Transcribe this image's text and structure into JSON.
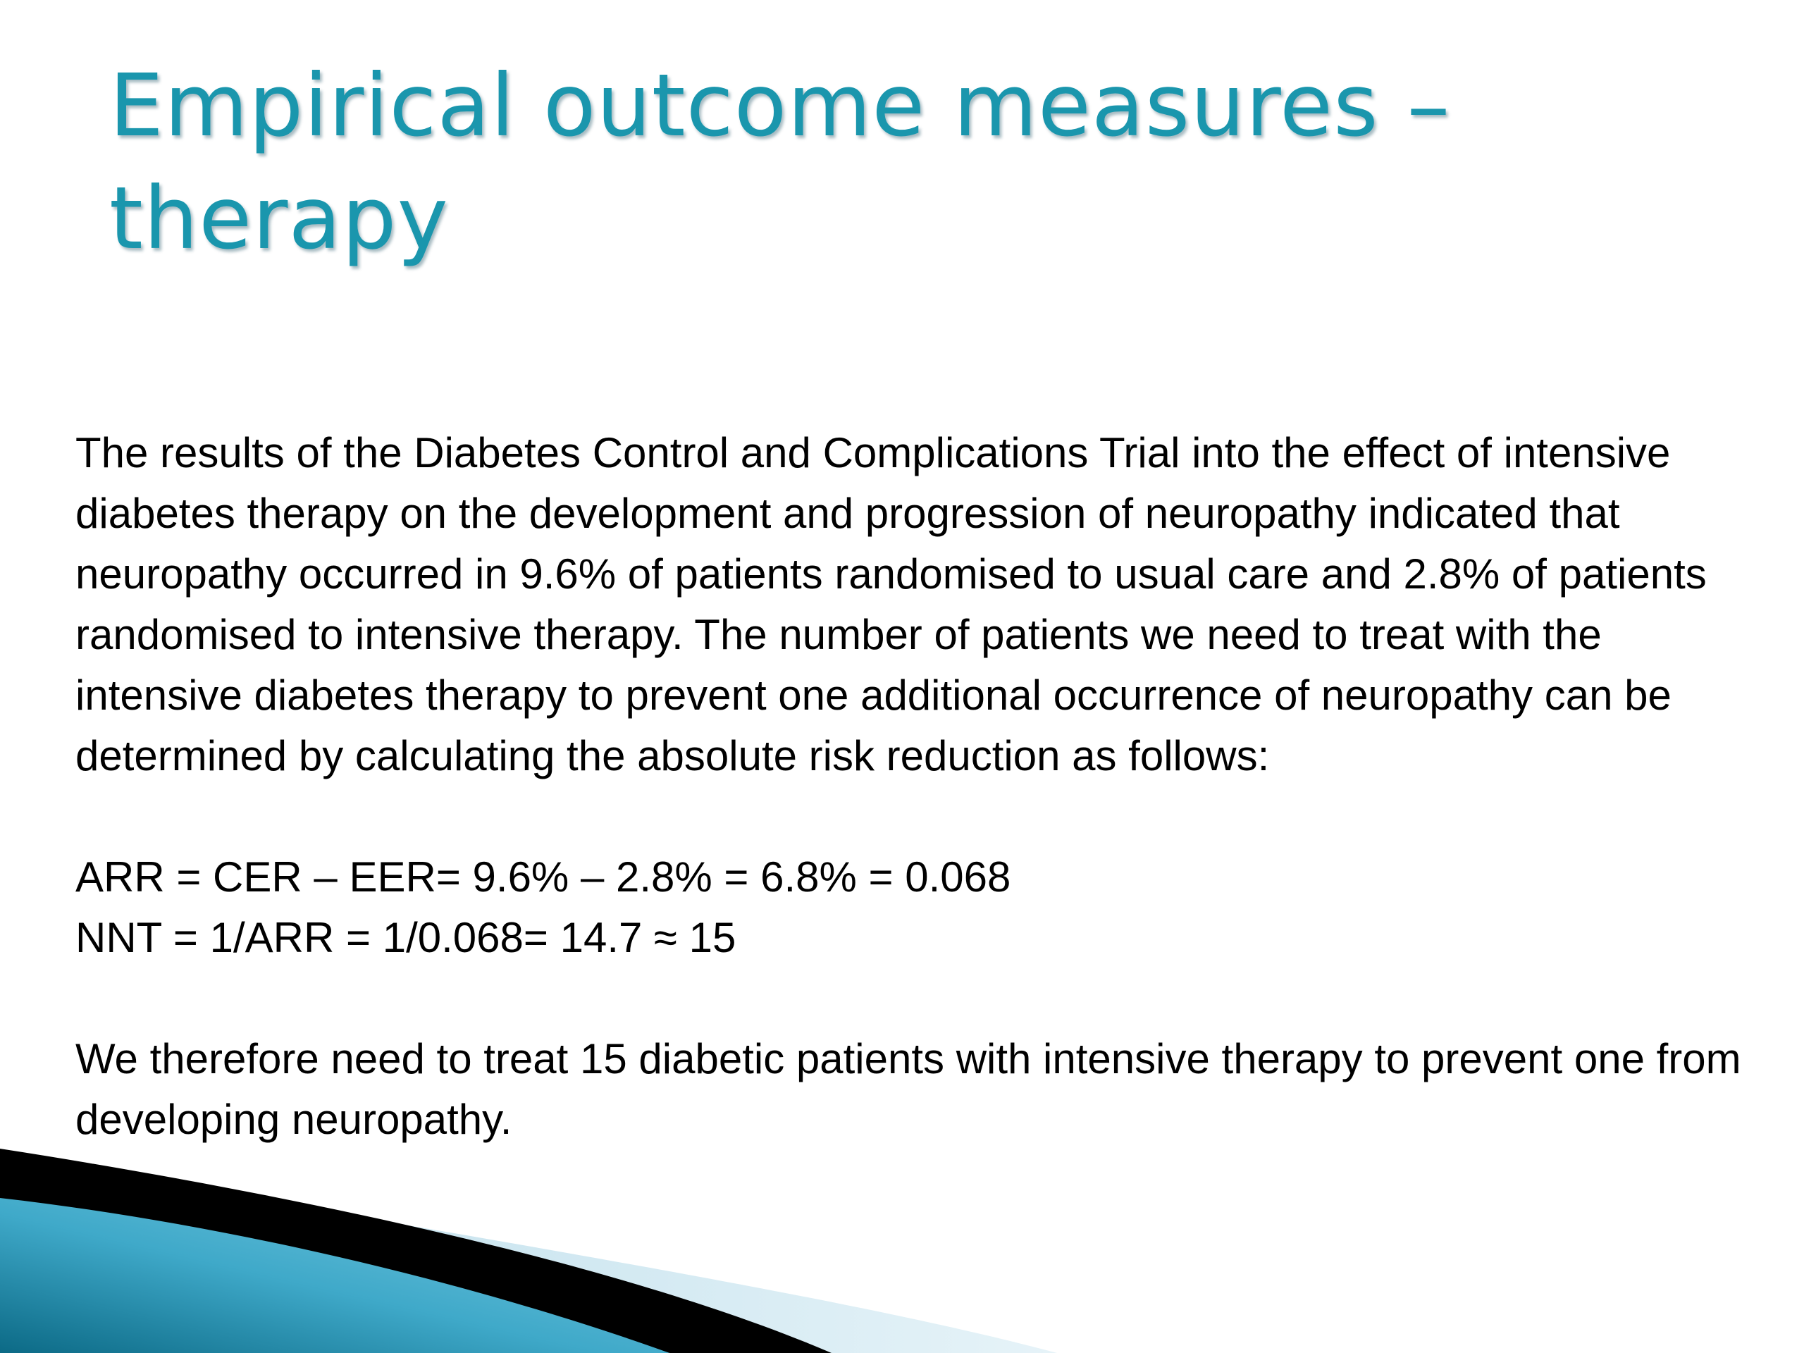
{
  "slide": {
    "title_lines": [
      "Empirical outcome measures –",
      "therapy"
    ],
    "paragraph1": "The results of the Diabetes Control and Complications Trial into the effect of intensive diabetes therapy on the development and progression of neuropathy indicated that neuropathy occurred in 9.6% of patients randomised to usual care and 2.8% of patients randomised to intensive therapy. The number of patients we need to treat with the intensive diabetes therapy to prevent one additional occurrence of neuropathy can be determined by calculating the absolute risk reduction as follows:",
    "formula_arr": "ARR = CER – EER= 9.6% – 2.8% = 6.8% = 0.068",
    "formula_nnt": "NNT = 1/ARR = 1/0.068= 14.7 ≈ 15",
    "conclusion": "We therefore need to treat 15 diabetic patients with intensive therapy to prevent one from developing neuropathy."
  },
  "colors": {
    "title": "#1a96ad",
    "deco_teal": "#1b7e98",
    "deco_light": "#cfe7f0",
    "deco_black": "#000000"
  }
}
